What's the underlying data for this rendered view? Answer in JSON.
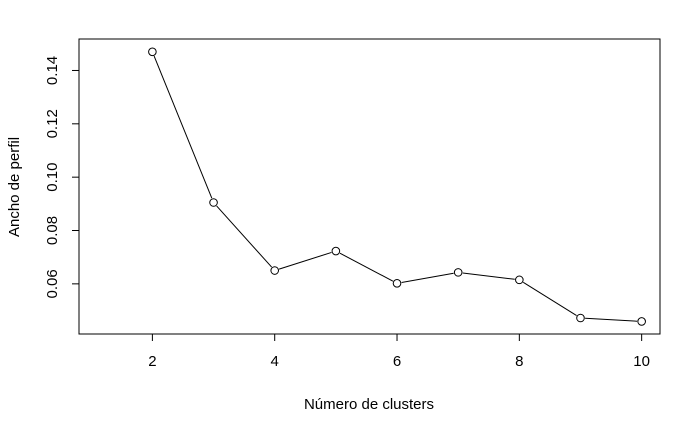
{
  "chart_data": {
    "type": "line",
    "title": "",
    "xlabel": "Número de clusters",
    "ylabel": "Ancho de perfil",
    "x": [
      2,
      3,
      4,
      5,
      6,
      7,
      8,
      9,
      10
    ],
    "y": [
      0.147,
      0.0905,
      0.065,
      0.0723,
      0.0602,
      0.0643,
      0.0615,
      0.0472,
      0.0459
    ],
    "x_ticks": [
      2,
      4,
      6,
      8,
      10
    ],
    "x_tick_labels": [
      "2",
      "4",
      "6",
      "8",
      "10"
    ],
    "y_ticks": [
      0.06,
      0.08,
      0.1,
      0.12,
      0.14
    ],
    "y_tick_labels": [
      "0.06",
      "0.08",
      "0.10",
      "0.12",
      "0.14"
    ],
    "xlim": [
      0.8,
      10.3
    ],
    "ylim": [
      0.0412,
      0.1518
    ],
    "marker": "open-circle",
    "grid": false,
    "legend": "none",
    "colors": {
      "line": "#000000",
      "axis": "#000000",
      "background": "#ffffff"
    }
  }
}
